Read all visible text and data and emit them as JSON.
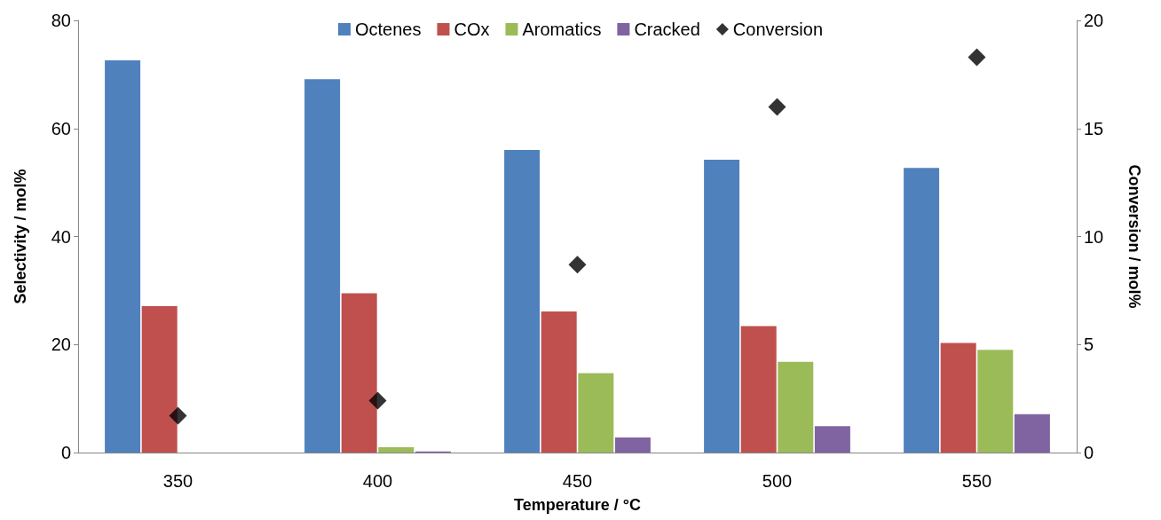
{
  "chart_data": {
    "type": "bar",
    "categories": [
      "350",
      "400",
      "450",
      "500",
      "550"
    ],
    "xlabel": "Temperature / °C",
    "ylabel": "Selectivity / mol%",
    "y2label": "Conversion / mol%",
    "series": [
      {
        "name": "Octenes",
        "color": "#4f81bd",
        "values": [
          72.6,
          69.1,
          56.0,
          54.2,
          52.7
        ]
      },
      {
        "name": "COx",
        "color": "#c0504d",
        "values": [
          27.1,
          29.5,
          26.1,
          23.4,
          20.3
        ]
      },
      {
        "name": "Aromatics",
        "color": "#9bbb59",
        "values": [
          0,
          1.0,
          14.7,
          16.8,
          19.0
        ]
      },
      {
        "name": "Cracked",
        "color": "#8064a2",
        "values": [
          0,
          0.2,
          2.8,
          4.9,
          7.1
        ]
      },
      {
        "name": "Conversion",
        "type": "scatter",
        "axis": "y2",
        "marker": "diamond",
        "color": "#000000",
        "values": [
          1.7,
          2.4,
          8.7,
          16.0,
          18.3
        ]
      }
    ],
    "ylim": [
      0,
      80
    ],
    "yticks": [
      0,
      20,
      40,
      60,
      80
    ],
    "y2lim": [
      0,
      20
    ],
    "y2ticks": [
      0,
      5,
      10,
      15,
      20
    ],
    "grid": false,
    "legend": "top"
  }
}
